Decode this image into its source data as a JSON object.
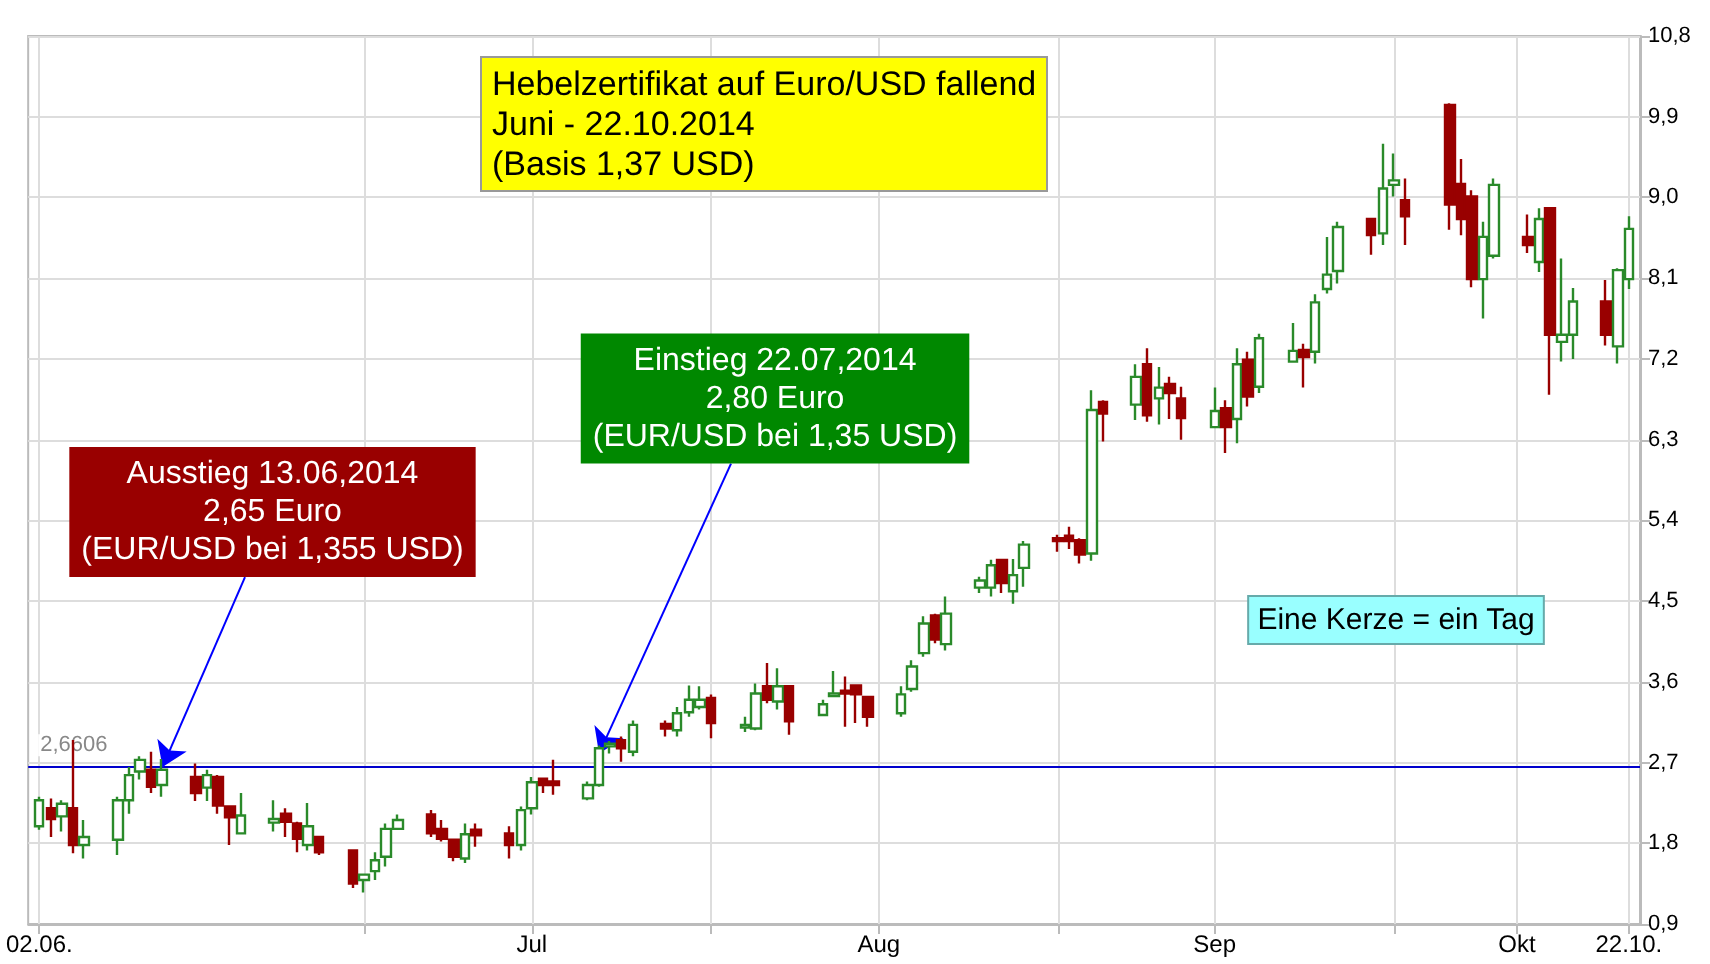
{
  "chart_data": {
    "type": "candlestick",
    "title": "Hebelzertifikat auf Euro/USD fallend\nJuni - 22.10.2014\n(Basis 1,37 USD)",
    "x": [
      "2014-06-02",
      "2014-06-03",
      "2014-06-04",
      "2014-06-05",
      "2014-06-06",
      "2014-06-09",
      "2014-06-10",
      "2014-06-11",
      "2014-06-12",
      "2014-06-13",
      "2014-06-16",
      "2014-06-17",
      "2014-06-18",
      "2014-06-19",
      "2014-06-20",
      "2014-06-23",
      "2014-06-24",
      "2014-06-25",
      "2014-06-26",
      "2014-06-27",
      "2014-06-30",
      "2014-07-01",
      "2014-07-02",
      "2014-07-03",
      "2014-07-04",
      "2014-07-07",
      "2014-07-08",
      "2014-07-09",
      "2014-07-10",
      "2014-07-11",
      "2014-07-14",
      "2014-07-15",
      "2014-07-16",
      "2014-07-17",
      "2014-07-18",
      "2014-07-21",
      "2014-07-22",
      "2014-07-23",
      "2014-07-24",
      "2014-07-25",
      "2014-07-28",
      "2014-07-29",
      "2014-07-30",
      "2014-07-31",
      "2014-08-01",
      "2014-08-04",
      "2014-08-05",
      "2014-08-06",
      "2014-08-07",
      "2014-08-08",
      "2014-08-11",
      "2014-08-12",
      "2014-08-13",
      "2014-08-14",
      "2014-08-15",
      "2014-08-18",
      "2014-08-19",
      "2014-08-20",
      "2014-08-21",
      "2014-08-22",
      "2014-08-25",
      "2014-08-26",
      "2014-08-27",
      "2014-08-28",
      "2014-08-29",
      "2014-09-01",
      "2014-09-02",
      "2014-09-03",
      "2014-09-04",
      "2014-09-05",
      "2014-09-08",
      "2014-09-09",
      "2014-09-10",
      "2014-09-11",
      "2014-09-12",
      "2014-09-15",
      "2014-09-16",
      "2014-09-17",
      "2014-09-18",
      "2014-09-19",
      "2014-09-22",
      "2014-09-23",
      "2014-09-24",
      "2014-09-25",
      "2014-09-26",
      "2014-09-29",
      "2014-09-30",
      "2014-10-01",
      "2014-10-02",
      "2014-10-06",
      "2014-10-07",
      "2014-10-08",
      "2014-10-09",
      "2014-10-10",
      "2014-10-13",
      "2014-10-14",
      "2014-10-15",
      "2014-10-16",
      "2014-10-17",
      "2014-10-20",
      "2014-10-21",
      "2014-10-22"
    ],
    "ohlc": [
      [
        1.99,
        2.32,
        1.95,
        2.28
      ],
      [
        2.19,
        2.3,
        1.87,
        2.07
      ],
      [
        2.1,
        2.28,
        1.93,
        2.24
      ],
      [
        2.19,
        2.95,
        1.69,
        1.78
      ],
      [
        1.78,
        2.06,
        1.63,
        1.87
      ],
      [
        1.84,
        2.32,
        1.67,
        2.28
      ],
      [
        2.28,
        2.65,
        2.13,
        2.56
      ],
      [
        2.6,
        2.77,
        2.51,
        2.73
      ],
      [
        2.62,
        2.82,
        2.36,
        2.43
      ],
      [
        2.45,
        2.74,
        2.32,
        2.62
      ],
      [
        2.54,
        2.69,
        2.27,
        2.36
      ],
      [
        2.42,
        2.62,
        2.27,
        2.56
      ],
      [
        2.54,
        2.56,
        2.13,
        2.22
      ],
      [
        2.21,
        2.22,
        1.78,
        2.09
      ],
      [
        1.91,
        2.36,
        1.9,
        2.11
      ],
      [
        2.03,
        2.28,
        1.93,
        2.07
      ],
      [
        2.13,
        2.19,
        1.87,
        2.04
      ],
      [
        2.02,
        2.04,
        1.7,
        1.85
      ],
      [
        1.78,
        2.25,
        1.72,
        1.99
      ],
      [
        1.87,
        1.87,
        1.67,
        1.7
      ],
      [
        1.72,
        1.72,
        1.3,
        1.35
      ],
      [
        1.39,
        1.45,
        1.25,
        1.45
      ],
      [
        1.49,
        1.7,
        1.39,
        1.61
      ],
      [
        1.65,
        2.02,
        1.54,
        1.96
      ],
      [
        1.96,
        2.12,
        1.95,
        2.06
      ],
      [
        2.12,
        2.17,
        1.87,
        1.91
      ],
      [
        1.96,
        2.06,
        1.82,
        1.85
      ],
      [
        1.84,
        1.85,
        1.6,
        1.65
      ],
      [
        1.63,
        2.02,
        1.58,
        1.9
      ],
      [
        1.95,
        2.02,
        1.76,
        1.89
      ],
      [
        1.91,
        1.99,
        1.63,
        1.78
      ],
      [
        1.78,
        2.21,
        1.72,
        2.17
      ],
      [
        2.19,
        2.54,
        2.12,
        2.48
      ],
      [
        2.52,
        2.52,
        2.36,
        2.45
      ],
      [
        2.49,
        2.73,
        2.34,
        2.45
      ],
      [
        2.3,
        2.49,
        2.28,
        2.45
      ],
      [
        2.45,
        2.89,
        2.43,
        2.86
      ],
      [
        2.88,
        2.94,
        2.8,
        2.91
      ],
      [
        2.95,
        2.99,
        2.71,
        2.86
      ],
      [
        2.82,
        3.17,
        2.77,
        3.12
      ],
      [
        3.13,
        3.17,
        2.99,
        3.08
      ],
      [
        3.06,
        3.32,
        2.99,
        3.25
      ],
      [
        3.26,
        3.56,
        3.21,
        3.4
      ],
      [
        3.32,
        3.55,
        3.29,
        3.4
      ],
      [
        3.42,
        3.46,
        2.97,
        3.14
      ],
      [
        3.09,
        3.21,
        3.04,
        3.12
      ],
      [
        3.08,
        3.58,
        3.06,
        3.47
      ],
      [
        3.55,
        3.81,
        3.36,
        3.4
      ],
      [
        3.38,
        3.75,
        3.29,
        3.55
      ],
      [
        3.55,
        3.56,
        3.01,
        3.16
      ],
      [
        3.23,
        3.4,
        3.23,
        3.35
      ],
      [
        3.44,
        3.72,
        3.44,
        3.47
      ],
      [
        3.5,
        3.66,
        3.1,
        3.47
      ],
      [
        3.56,
        3.56,
        3.14,
        3.46
      ],
      [
        3.43,
        3.43,
        3.1,
        3.21
      ],
      [
        3.25,
        3.55,
        3.21,
        3.46
      ],
      [
        3.52,
        3.84,
        3.49,
        3.77
      ],
      [
        3.92,
        4.33,
        3.88,
        4.25
      ],
      [
        4.34,
        4.36,
        4.03,
        4.07
      ],
      [
        4.02,
        4.55,
        3.95,
        4.36
      ],
      [
        4.65,
        4.77,
        4.59,
        4.73
      ],
      [
        4.65,
        4.96,
        4.55,
        4.9
      ],
      [
        4.96,
        4.97,
        4.59,
        4.7
      ],
      [
        4.61,
        4.97,
        4.47,
        4.79
      ],
      [
        4.87,
        5.17,
        4.66,
        5.13
      ],
      [
        5.2,
        5.24,
        5.05,
        5.17
      ],
      [
        5.23,
        5.33,
        5.08,
        5.17
      ],
      [
        5.18,
        5.2,
        4.92,
        5.02
      ],
      [
        5.03,
        6.85,
        4.95,
        6.63
      ],
      [
        6.72,
        6.74,
        6.28,
        6.59
      ],
      [
        6.69,
        7.14,
        6.52,
        7.0
      ],
      [
        7.14,
        7.32,
        6.5,
        6.57
      ],
      [
        6.76,
        7.11,
        6.47,
        6.88
      ],
      [
        6.92,
        7.0,
        6.53,
        6.82
      ],
      [
        6.76,
        6.89,
        6.3,
        6.54
      ],
      [
        6.44,
        6.88,
        6.44,
        6.62
      ],
      [
        6.65,
        6.74,
        6.15,
        6.44
      ],
      [
        6.53,
        7.32,
        6.26,
        7.14
      ],
      [
        7.19,
        7.28,
        6.67,
        6.78
      ],
      [
        6.89,
        7.48,
        6.82,
        7.43
      ],
      [
        7.17,
        7.6,
        7.17,
        7.29
      ],
      [
        7.3,
        7.37,
        6.88,
        7.22
      ],
      [
        7.28,
        7.92,
        7.15,
        7.83
      ],
      [
        7.98,
        8.56,
        7.93,
        8.14
      ],
      [
        8.18,
        8.73,
        8.04,
        8.67
      ],
      [
        8.76,
        8.76,
        8.36,
        8.58
      ],
      [
        8.6,
        9.6,
        8.47,
        9.1
      ],
      [
        9.14,
        9.49,
        9.01,
        9.19
      ],
      [
        8.97,
        9.21,
        8.47,
        8.79
      ],
      [
        10.03,
        10.05,
        8.64,
        8.92
      ],
      [
        9.15,
        9.43,
        8.58,
        8.76
      ],
      [
        9.01,
        9.08,
        8.0,
        8.09
      ],
      [
        8.09,
        8.73,
        7.65,
        8.56
      ],
      [
        8.35,
        9.21,
        8.32,
        9.14
      ],
      [
        8.56,
        8.81,
        8.38,
        8.47
      ],
      [
        8.28,
        8.88,
        8.17,
        8.76
      ],
      [
        8.88,
        8.88,
        6.8,
        7.47
      ],
      [
        7.39,
        8.32,
        7.17,
        7.47
      ],
      [
        7.47,
        7.99,
        7.2,
        7.84
      ],
      [
        7.84,
        8.08,
        7.35,
        7.47
      ],
      [
        7.34,
        8.21,
        7.15,
        8.19
      ],
      [
        8.09,
        8.79,
        7.98,
        8.65
      ]
    ],
    "xlim": [
      "2014-06-01",
      "2014-10-23"
    ],
    "xticks": [
      {
        "value": "2014-06-02",
        "label": "02.06."
      },
      {
        "value": "2014-07-01",
        "label": null
      },
      {
        "value": "2014-07-16",
        "label": "Jul"
      },
      {
        "value": "2014-08-01",
        "label": null
      },
      {
        "value": "2014-08-16",
        "label": "Aug"
      },
      {
        "value": "2014-09-01",
        "label": null
      },
      {
        "value": "2014-09-15",
        "label": "Sep"
      },
      {
        "value": "2014-10-01",
        "label": null
      },
      {
        "value": "2014-10-12",
        "label": "Okt"
      },
      {
        "value": "2014-10-22",
        "label": "22.10."
      }
    ],
    "ylim": [
      0.9,
      10.8
    ],
    "yticks": [
      {
        "value": 0.9,
        "label": "0,9"
      },
      {
        "value": 1.8,
        "label": "1,8"
      },
      {
        "value": 2.7,
        "label": "2,7"
      },
      {
        "value": 3.6,
        "label": "3,6"
      },
      {
        "value": 4.5,
        "label": "4,5"
      },
      {
        "value": 5.4,
        "label": "5,4"
      },
      {
        "value": 6.3,
        "label": "6,3"
      },
      {
        "value": 7.2,
        "label": "7,2"
      },
      {
        "value": 8.1,
        "label": "8,1"
      },
      {
        "value": 9.0,
        "label": "9,0"
      },
      {
        "value": 9.9,
        "label": "9,9"
      },
      {
        "value": 10.8,
        "label": "10,8"
      }
    ],
    "ref_lines": [
      {
        "axis": "y",
        "value": 2.6606,
        "label": "2,6606",
        "color": "#0000cc"
      }
    ],
    "annotations": [
      {
        "text": "Ausstieg 13.06,2014\n2,65 Euro\n(EUR/USD bei 1,355 USD)",
        "x": "2014-06-13",
        "y": 2.65
      },
      {
        "text": "Einstieg 22.07,2014\n2,80 Euro\n(EUR/USD bei 1,35 USD)",
        "x": "2014-07-22",
        "y": 2.8
      },
      "Eine Kerze = ein Tag"
    ],
    "grid": true
  }
}
